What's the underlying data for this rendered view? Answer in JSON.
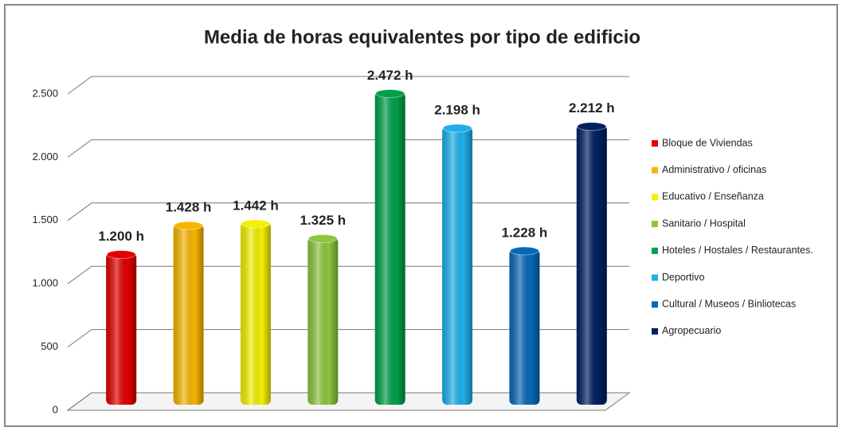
{
  "chart_data": {
    "type": "bar",
    "title": "Media de horas equivalentes por tipo de edificio",
    "series": [
      {
        "name": "Bloque de Viviendas",
        "color": "#e30000",
        "values": [
          1200
        ],
        "value_labels": [
          "1.200 h"
        ]
      },
      {
        "name": "Administrativo / oficinas",
        "color": "#f7b500",
        "values": [
          1428
        ],
        "value_labels": [
          "1.428 h"
        ]
      },
      {
        "name": "Educativo / Enseñanza",
        "color": "#f4f000",
        "values": [
          1442
        ],
        "value_labels": [
          "1.442 h"
        ]
      },
      {
        "name": "Sanitario / Hospital",
        "color": "#8cc63f",
        "values": [
          1325
        ],
        "value_labels": [
          "1.325 h"
        ]
      },
      {
        "name": "Hoteles / Hostales / Restaurantes.",
        "color": "#00a04a",
        "values": [
          2472
        ],
        "value_labels": [
          "2.472 h"
        ]
      },
      {
        "name": "Deportivo",
        "color": "#1eb0ea",
        "values": [
          2198
        ],
        "value_labels": [
          "2.198 h"
        ]
      },
      {
        "name": "Cultural / Museos / Binliotecas",
        "color": "#0868b8",
        "values": [
          1228
        ],
        "value_labels": [
          "1.228 h"
        ]
      },
      {
        "name": "Agropecuario",
        "color": "#002060",
        "values": [
          2212
        ],
        "value_labels": [
          "2.212 h"
        ]
      }
    ],
    "ylim": [
      0,
      2500
    ],
    "yticks": [
      0,
      500,
      {
        "value": 1000,
        "label": "1.000"
      },
      {
        "value": 1500,
        "label": "1.500"
      },
      {
        "value": 2000,
        "label": "2.000"
      },
      {
        "value": 2500,
        "label": "2.500"
      }
    ],
    "grid": true,
    "legend": "right"
  }
}
